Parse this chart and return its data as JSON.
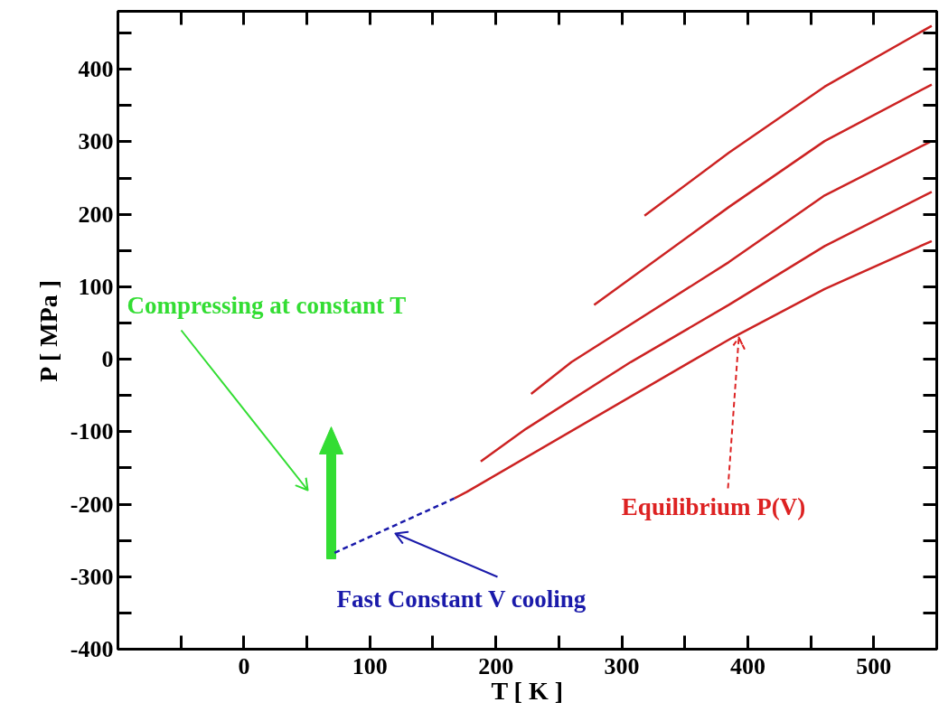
{
  "chart_data": {
    "type": "line",
    "xlabel": "T [ K ]",
    "ylabel": "P [ MPa ]",
    "xlim": [
      -100,
      550
    ],
    "xticks": [
      {
        "value": -50,
        "label": null
      },
      0,
      {
        "value": 50,
        "label": null
      },
      100,
      {
        "value": 150,
        "label": null
      },
      200,
      {
        "value": 250,
        "label": null
      },
      300,
      {
        "value": 350,
        "label": null
      },
      400,
      {
        "value": 450,
        "label": null
      },
      500
    ],
    "ylim": [
      -400,
      480
    ],
    "yticks": [
      -400,
      {
        "value": -350,
        "label": null
      },
      -300,
      {
        "value": -250,
        "label": null
      },
      -200,
      {
        "value": -150,
        "label": null
      },
      -100,
      {
        "value": -50,
        "label": null
      },
      0,
      {
        "value": 50,
        "label": null
      },
      100,
      {
        "value": 150,
        "label": null
      },
      200,
      {
        "value": 250,
        "label": null
      },
      300,
      {
        "value": 350,
        "label": null
      },
      400,
      {
        "value": 450,
        "label": null
      }
    ],
    "grid": false,
    "marker": "none",
    "series": [
      {
        "color": "#cc2222",
        "x": [
          318,
          385,
          461,
          546
        ],
        "values": [
          198,
          285,
          376,
          460
        ]
      },
      {
        "color": "#cc2222",
        "x": [
          278,
          385,
          461,
          546
        ],
        "values": [
          75,
          210,
          301,
          379
        ]
      },
      {
        "color": "#cc2222",
        "x": [
          228,
          260,
          385,
          461,
          546
        ],
        "values": [
          -48,
          -4,
          134,
          226,
          301
        ]
      },
      {
        "color": "#cc2222",
        "x": [
          188,
          224,
          307,
          385,
          461,
          546
        ],
        "values": [
          -141,
          -96,
          -4,
          75,
          156,
          231
        ]
      },
      {
        "color": "#cc2222",
        "x": [
          167,
          177,
          354,
          388,
          461,
          546
        ],
        "values": [
          -192,
          -183,
          -4,
          30,
          97,
          163
        ]
      },
      {
        "color": "#1a1aaa",
        "line_style": "dashed",
        "x": [
          72,
          167
        ],
        "values": [
          -267,
          -192
        ]
      }
    ],
    "annotations": [
      "Compressing at constant T",
      "Fast Constant V cooling",
      "Equilibrium P(V)"
    ]
  }
}
